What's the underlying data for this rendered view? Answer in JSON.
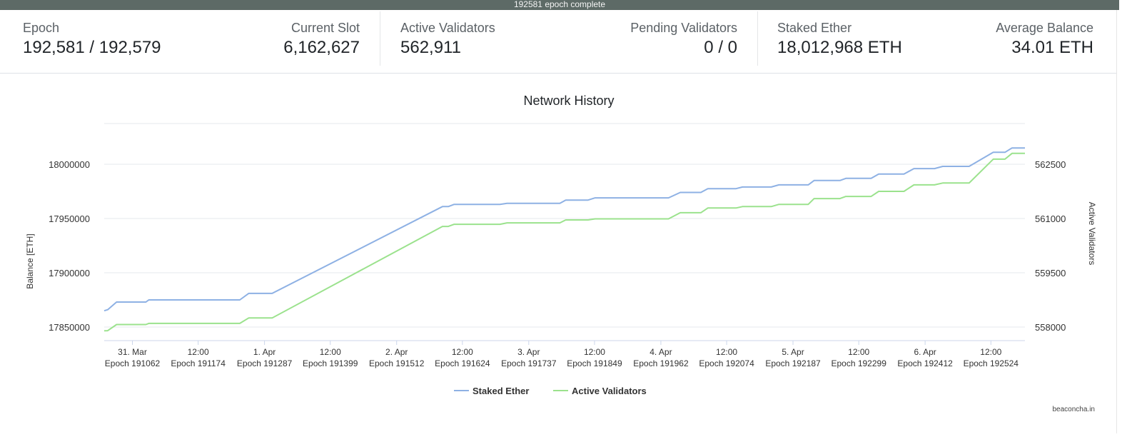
{
  "status_bar": {
    "text": "192581 epoch complete"
  },
  "stats": {
    "epoch": {
      "label": "Epoch",
      "value": "192,581 / 192,579"
    },
    "current_slot": {
      "label": "Current Slot",
      "value": "6,162,627"
    },
    "active_validators": {
      "label": "Active Validators",
      "value": "562,911"
    },
    "pending_validators": {
      "label": "Pending Validators",
      "value": "0 / 0"
    },
    "staked_ether": {
      "label": "Staked Ether",
      "value": "18,012,968 ETH"
    },
    "average_balance": {
      "label": "Average Balance",
      "value": "34.01 ETH"
    }
  },
  "credit": "beaconcha.in",
  "colors": {
    "staked_ether": "#8eb1e4",
    "active_validators": "#9be28d",
    "grid": "#e6e9ee",
    "status_bar": "#5d6a66"
  },
  "chart_data": {
    "type": "line",
    "title": "Network History",
    "ylabel": "Balance [ETH]",
    "y2label": "Active Validators",
    "ylim": [
      17837500,
      18037500
    ],
    "y2lim": [
      557625,
      563625
    ],
    "yticks": [
      17850000,
      17900000,
      17950000,
      18000000
    ],
    "y2ticks": [
      558000,
      559500,
      561000,
      562500
    ],
    "xlim": [
      191014,
      192582
    ],
    "x_ticks": [
      {
        "x": 191062,
        "date": "31. Mar",
        "epoch": "Epoch 191062"
      },
      {
        "x": 191174,
        "date": "12:00",
        "epoch": "Epoch 191174"
      },
      {
        "x": 191287,
        "date": "1. Apr",
        "epoch": "Epoch 191287"
      },
      {
        "x": 191399,
        "date": "12:00",
        "epoch": "Epoch 191399"
      },
      {
        "x": 191512,
        "date": "2. Apr",
        "epoch": "Epoch 191512"
      },
      {
        "x": 191624,
        "date": "12:00",
        "epoch": "Epoch 191624"
      },
      {
        "x": 191737,
        "date": "3. Apr",
        "epoch": "Epoch 191737"
      },
      {
        "x": 191849,
        "date": "12:00",
        "epoch": "Epoch 191849"
      },
      {
        "x": 191962,
        "date": "4. Apr",
        "epoch": "Epoch 191962"
      },
      {
        "x": 192074,
        "date": "12:00",
        "epoch": "Epoch 192074"
      },
      {
        "x": 192187,
        "date": "5. Apr",
        "epoch": "Epoch 192187"
      },
      {
        "x": 192299,
        "date": "12:00",
        "epoch": "Epoch 192299"
      },
      {
        "x": 192412,
        "date": "6. Apr",
        "epoch": "Epoch 192412"
      },
      {
        "x": 192524,
        "date": "12:00",
        "epoch": "Epoch 192524"
      }
    ],
    "legend": "bottom-center",
    "grid": true,
    "series": [
      {
        "name": "Staked Ether",
        "axis": "left",
        "color": "#8eb1e4",
        "points": [
          [
            191014,
            17865000
          ],
          [
            191020,
            17866000
          ],
          [
            191035,
            17873000
          ],
          [
            191085,
            17873000
          ],
          [
            191090,
            17875000
          ],
          [
            191245,
            17875000
          ],
          [
            191260,
            17881000
          ],
          [
            191300,
            17881000
          ],
          [
            191590,
            17961000
          ],
          [
            191600,
            17961000
          ],
          [
            191610,
            17963000
          ],
          [
            191688,
            17963000
          ],
          [
            191700,
            17964000
          ],
          [
            191790,
            17964000
          ],
          [
            191800,
            17967000
          ],
          [
            191838,
            17967000
          ],
          [
            191850,
            17969000
          ],
          [
            191975,
            17969000
          ],
          [
            191995,
            17974000
          ],
          [
            192030,
            17974000
          ],
          [
            192042,
            17977500
          ],
          [
            192090,
            17977500
          ],
          [
            192101,
            17979000
          ],
          [
            192150,
            17979000
          ],
          [
            192163,
            17981000
          ],
          [
            192213,
            17981000
          ],
          [
            192223,
            17985000
          ],
          [
            192267,
            17985000
          ],
          [
            192277,
            17987000
          ],
          [
            192320,
            17987000
          ],
          [
            192333,
            17991000
          ],
          [
            192376,
            17991000
          ],
          [
            192393,
            17996000
          ],
          [
            192428,
            17996000
          ],
          [
            192442,
            17998000
          ],
          [
            192487,
            17998000
          ],
          [
            192528,
            18011000
          ],
          [
            192548,
            18011000
          ],
          [
            192560,
            18015000
          ],
          [
            192582,
            18015000
          ]
        ]
      },
      {
        "name": "Active Validators",
        "axis": "right",
        "color": "#9be28d",
        "points": [
          [
            191014,
            557895
          ],
          [
            191020,
            557900
          ],
          [
            191035,
            558070
          ],
          [
            191085,
            558070
          ],
          [
            191090,
            558100
          ],
          [
            191245,
            558100
          ],
          [
            191260,
            558250
          ],
          [
            191300,
            558250
          ],
          [
            191590,
            560780
          ],
          [
            191600,
            560780
          ],
          [
            191610,
            560840
          ],
          [
            191688,
            560840
          ],
          [
            191700,
            560880
          ],
          [
            191790,
            560880
          ],
          [
            191800,
            560960
          ],
          [
            191838,
            560960
          ],
          [
            191850,
            560990
          ],
          [
            191975,
            560990
          ],
          [
            191995,
            561160
          ],
          [
            192030,
            561160
          ],
          [
            192042,
            561290
          ],
          [
            192090,
            561290
          ],
          [
            192101,
            561330
          ],
          [
            192150,
            561330
          ],
          [
            192163,
            561390
          ],
          [
            192213,
            561390
          ],
          [
            192223,
            561550
          ],
          [
            192267,
            561550
          ],
          [
            192277,
            561610
          ],
          [
            192320,
            561610
          ],
          [
            192333,
            561750
          ],
          [
            192376,
            561750
          ],
          [
            192393,
            561930
          ],
          [
            192428,
            561930
          ],
          [
            192442,
            561980
          ],
          [
            192487,
            561980
          ],
          [
            192528,
            562640
          ],
          [
            192548,
            562640
          ],
          [
            192560,
            562800
          ],
          [
            192582,
            562800
          ]
        ]
      }
    ]
  }
}
